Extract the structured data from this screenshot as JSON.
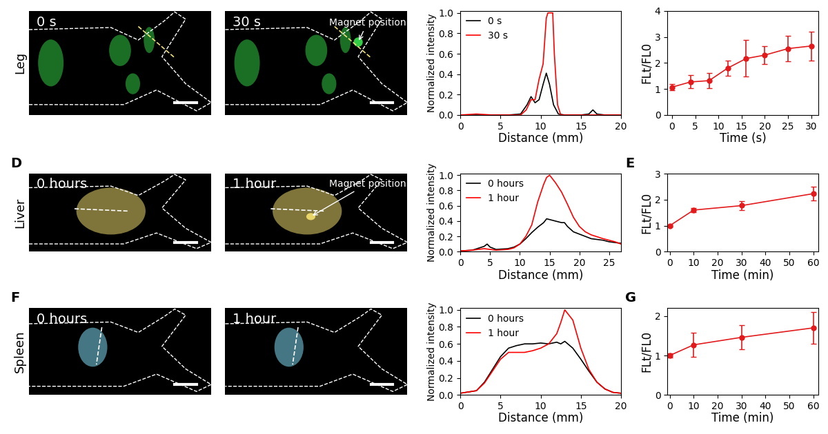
{
  "chart_data": [
    {
      "type": "image",
      "title": "0 s",
      "ylabel": "Leg",
      "color": "#33cc44"
    },
    {
      "type": "image",
      "title": "30 s",
      "annotation": "Magnet position",
      "color": "#33cc44"
    },
    {
      "type": "line",
      "xlabel": "Distance (mm)",
      "ylabel": "Normalized intensity",
      "xlim": [
        0,
        20
      ],
      "ylim": [
        0,
        1.02
      ],
      "xticks": [
        0,
        5,
        10,
        15,
        20
      ],
      "yticks": [
        {
          "value": 0,
          "label": "0.0"
        },
        {
          "value": 0.2,
          "label": "0.2"
        },
        {
          "value": 0.4,
          "label": "0.4"
        },
        {
          "value": 0.6,
          "label": "0.6"
        },
        {
          "value": 0.8,
          "label": "0.8"
        },
        {
          "value": 1.0,
          "label": "1.0"
        }
      ],
      "legend": "upper left",
      "series": [
        {
          "name": "0 s",
          "color": "#000000",
          "x": [
            0,
            2,
            4,
            6,
            7.5,
            8.3,
            8.8,
            9.3,
            9.8,
            10.3,
            10.7,
            11.1,
            11.6,
            12.2,
            13,
            15,
            16,
            16.5,
            17,
            18,
            20
          ],
          "values": [
            0,
            0,
            0,
            0,
            0.01,
            0.1,
            0.18,
            0.12,
            0.15,
            0.3,
            0.41,
            0.3,
            0.1,
            0.01,
            0,
            0,
            0.01,
            0.05,
            0.01,
            0,
            0
          ]
        },
        {
          "name": "30 s",
          "color": "#ff0000",
          "x": [
            0,
            2,
            4,
            6,
            7.5,
            8.2,
            8.8,
            9.3,
            9.8,
            10.3,
            10.7,
            10.9,
            11.5,
            11.7,
            12.1,
            12.5,
            14,
            16,
            18,
            20
          ],
          "values": [
            0,
            0.01,
            0,
            0,
            0,
            0.05,
            0.15,
            0.15,
            0.35,
            0.5,
            0.95,
            1.0,
            1.0,
            0.6,
            0.1,
            0,
            0,
            0,
            0,
            0
          ]
        }
      ]
    },
    {
      "type": "line",
      "xlabel": "Time (s)",
      "ylabel": "FLt/FL0",
      "xlim": [
        -1,
        31.5
      ],
      "ylim": [
        0,
        4
      ],
      "xticks": [
        0,
        5,
        10,
        15,
        20,
        25,
        30
      ],
      "yticks": [
        0,
        1,
        2,
        3,
        4
      ],
      "marker": "circle",
      "x": [
        0,
        4,
        8,
        12,
        16,
        20,
        25,
        30
      ],
      "series": [
        {
          "color": "#e31a1c",
          "values": [
            1.07,
            1.27,
            1.32,
            1.8,
            2.17,
            2.3,
            2.55,
            2.65
          ],
          "errors": [
            0.12,
            0.25,
            0.3,
            0.3,
            0.7,
            0.35,
            0.5,
            0.55
          ]
        }
      ]
    },
    {
      "type": "image",
      "title": "0 hours",
      "ylabel": "Liver",
      "panel_label": "D",
      "color": "#e8d56a"
    },
    {
      "type": "image",
      "title": "1 hour",
      "annotation": "Magnet position",
      "color": "#e8d56a"
    },
    {
      "type": "line",
      "xlabel": "Distance (mm)",
      "ylabel": "Normalized intensity",
      "xlim": [
        0,
        27
      ],
      "ylim": [
        0,
        1.02
      ],
      "xticks": [
        0,
        5,
        10,
        15,
        20,
        25
      ],
      "yticks": [
        {
          "value": 0,
          "label": "0.0"
        },
        {
          "value": 0.2,
          "label": "0.2"
        },
        {
          "value": 0.4,
          "label": "0.4"
        },
        {
          "value": 0.6,
          "label": "0.6"
        },
        {
          "value": 0.8,
          "label": "0.8"
        },
        {
          "value": 1.0,
          "label": "1.0"
        }
      ],
      "legend": "upper left",
      "series": [
        {
          "name": "0 hours",
          "color": "#000000",
          "x": [
            0,
            2,
            4,
            4.5,
            5,
            6,
            8,
            9,
            10,
            11,
            12,
            13,
            14,
            14.5,
            15,
            16,
            17,
            17.5,
            18,
            19,
            20,
            21,
            22,
            24,
            25,
            26,
            27
          ],
          "values": [
            0.01,
            0.02,
            0.07,
            0.1,
            0.06,
            0.03,
            0.04,
            0.06,
            0.1,
            0.17,
            0.25,
            0.32,
            0.38,
            0.43,
            0.42,
            0.4,
            0.38,
            0.38,
            0.33,
            0.26,
            0.23,
            0.2,
            0.17,
            0.15,
            0.13,
            0.12,
            0.11
          ]
        },
        {
          "name": "1 hour",
          "color": "#ff0000",
          "x": [
            0,
            2,
            4,
            5,
            6,
            8,
            9,
            10,
            11,
            12,
            13,
            14,
            14.5,
            15,
            15.5,
            16,
            17,
            18,
            19,
            20,
            21,
            22,
            24,
            25,
            26,
            27
          ],
          "values": [
            0.01,
            0.02,
            0.04,
            0.03,
            0.02,
            0.03,
            0.05,
            0.1,
            0.2,
            0.35,
            0.65,
            0.88,
            0.97,
            1.0,
            0.95,
            0.9,
            0.78,
            0.62,
            0.45,
            0.33,
            0.26,
            0.22,
            0.17,
            0.15,
            0.13,
            0.1
          ]
        }
      ]
    },
    {
      "type": "line",
      "xlabel": "Time (min)",
      "ylabel": "FLt/FL0",
      "panel_label": "E",
      "xlim": [
        -1,
        62
      ],
      "ylim": [
        0,
        3
      ],
      "xticks": [
        0,
        10,
        20,
        30,
        40,
        50,
        60
      ],
      "yticks": [
        0,
        1,
        2,
        3
      ],
      "marker": "circle",
      "x": [
        0,
        10,
        30,
        60
      ],
      "series": [
        {
          "color": "#e31a1c",
          "values": [
            1.0,
            1.6,
            1.77,
            2.23
          ],
          "errors": [
            0.05,
            0.07,
            0.18,
            0.27
          ]
        }
      ]
    },
    {
      "type": "image",
      "title": "0 hours",
      "ylabel": "Spleen",
      "panel_label": "F",
      "color": "#7fd8f0"
    },
    {
      "type": "image",
      "title": "1 hour",
      "color": "#7fd8f0"
    },
    {
      "type": "line",
      "xlabel": "Distance (mm)",
      "ylabel": "Normalized intensity",
      "xlim": [
        0,
        20
      ],
      "ylim": [
        0,
        1.02
      ],
      "xticks": [
        0,
        5,
        10,
        15,
        20
      ],
      "yticks": [
        {
          "value": 0,
          "label": "0.0"
        },
        {
          "value": 0.2,
          "label": "0.2"
        },
        {
          "value": 0.4,
          "label": "0.4"
        },
        {
          "value": 0.6,
          "label": "0.6"
        },
        {
          "value": 0.8,
          "label": "0.8"
        },
        {
          "value": 1.0,
          "label": "1.0"
        }
      ],
      "legend": "upper left",
      "series": [
        {
          "name": "0 hours",
          "color": "#000000",
          "x": [
            0,
            2,
            3,
            4,
            5,
            6,
            7,
            8,
            9,
            10,
            11,
            12,
            12.5,
            13,
            14,
            15,
            16,
            17,
            18,
            19,
            20
          ],
          "values": [
            0.02,
            0.05,
            0.15,
            0.3,
            0.45,
            0.55,
            0.58,
            0.6,
            0.6,
            0.61,
            0.6,
            0.62,
            0.6,
            0.63,
            0.55,
            0.42,
            0.28,
            0.15,
            0.07,
            0.03,
            0.02
          ]
        },
        {
          "name": "1 hour",
          "color": "#ff0000",
          "x": [
            0,
            2,
            3,
            4,
            5,
            6,
            7,
            8,
            9,
            10,
            11,
            12,
            12.5,
            13,
            14,
            15,
            16,
            17,
            18,
            19,
            20
          ],
          "values": [
            0.02,
            0.05,
            0.14,
            0.28,
            0.42,
            0.5,
            0.5,
            0.5,
            0.52,
            0.55,
            0.6,
            0.72,
            0.85,
            1.0,
            0.88,
            0.55,
            0.3,
            0.15,
            0.07,
            0.03,
            0.02
          ]
        }
      ]
    },
    {
      "type": "line",
      "xlabel": "Time (min)",
      "ylabel": "FLt/FL0",
      "panel_label": "G",
      "xlim": [
        -1,
        62
      ],
      "ylim": [
        0,
        2.2
      ],
      "xticks": [
        0,
        10,
        20,
        30,
        40,
        50,
        60
      ],
      "yticks": [
        0,
        1,
        2
      ],
      "marker": "circle",
      "x": [
        0,
        10,
        30,
        60
      ],
      "series": [
        {
          "color": "#e31a1c",
          "values": [
            1.0,
            1.27,
            1.46,
            1.7
          ],
          "errors": [
            0.05,
            0.3,
            0.3,
            0.4
          ]
        }
      ]
    }
  ]
}
